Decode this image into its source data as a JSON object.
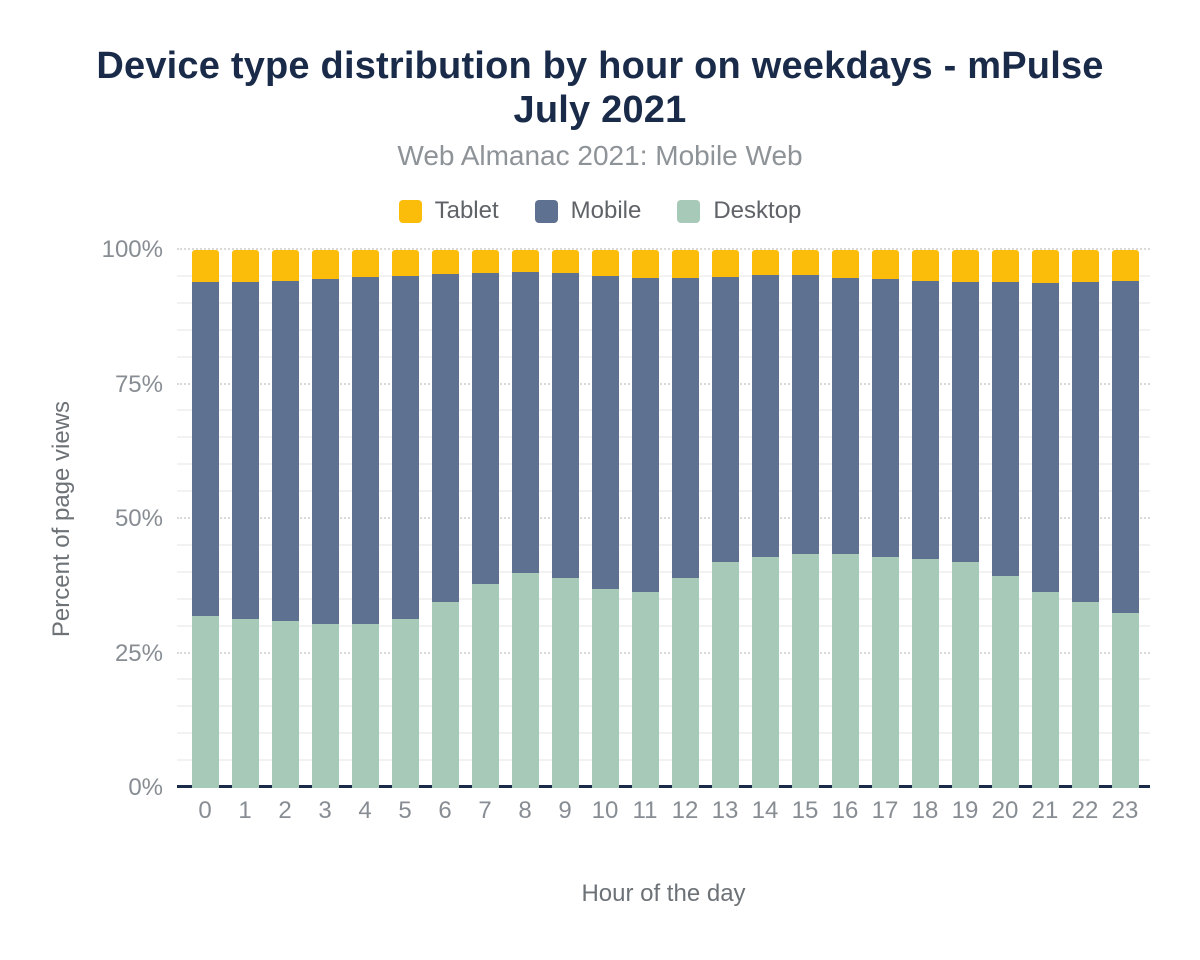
{
  "chart_data": {
    "type": "bar",
    "stacked": true,
    "title": "Device type distribution by hour on weekdays - mPulse July 2021",
    "subtitle": "Web Almanac 2021: Mobile Web",
    "xlabel": "Hour of the day",
    "ylabel": "Percent of page views",
    "ylim": [
      0,
      100
    ],
    "y_tick_labels": [
      "0%",
      "25%",
      "50%",
      "75%",
      "100%"
    ],
    "y_major_step": 25,
    "y_minor_step": 5,
    "grid": "major dotted + minor faint, horizontal only",
    "legend_position": "top-center",
    "categories": [
      "0",
      "1",
      "2",
      "3",
      "4",
      "5",
      "6",
      "7",
      "8",
      "9",
      "10",
      "11",
      "12",
      "13",
      "14",
      "15",
      "16",
      "17",
      "18",
      "19",
      "20",
      "21",
      "22",
      "23"
    ],
    "stack_order_bottom_to_top": [
      "Desktop",
      "Mobile",
      "Tablet"
    ],
    "series": [
      {
        "name": "Tablet",
        "color": "#fbbd0a",
        "values": [
          6.0,
          6.0,
          5.8,
          5.4,
          5.0,
          4.8,
          4.5,
          4.2,
          4.1,
          4.3,
          4.8,
          5.2,
          5.2,
          5.0,
          4.7,
          4.7,
          5.2,
          5.4,
          5.7,
          5.9,
          5.9,
          6.1,
          5.9,
          5.8
        ]
      },
      {
        "name": "Mobile",
        "color": "#5f7190",
        "values": [
          62.0,
          62.5,
          63.2,
          64.1,
          64.5,
          63.7,
          61.0,
          57.8,
          55.9,
          56.7,
          58.2,
          58.3,
          55.8,
          53.0,
          52.3,
          51.8,
          51.3,
          51.6,
          51.8,
          52.1,
          54.6,
          57.4,
          59.6,
          61.7
        ]
      },
      {
        "name": "Desktop",
        "color": "#a7c9b8",
        "values": [
          32.0,
          31.5,
          31.0,
          30.5,
          30.5,
          31.5,
          34.5,
          38.0,
          40.0,
          39.0,
          37.0,
          36.5,
          39.0,
          42.0,
          43.0,
          43.5,
          43.5,
          43.0,
          42.5,
          42.0,
          39.5,
          36.5,
          34.5,
          32.5
        ]
      }
    ]
  },
  "colors": {
    "title_navy": "#1a2b49",
    "axis_line_navy": "#1a2b49",
    "subtitle_gray": "#8e9398",
    "tick_gray": "#878d93",
    "legend_text_gray": "#5f6368",
    "background": "#ffffff"
  }
}
